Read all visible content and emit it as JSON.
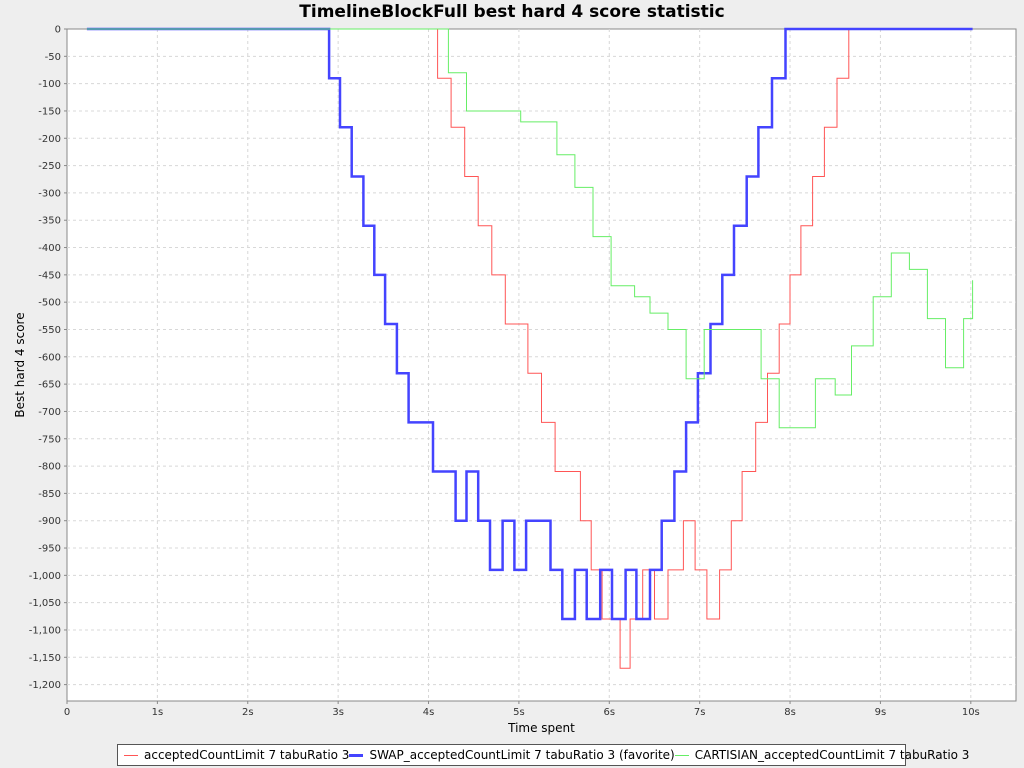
{
  "chart_data": {
    "type": "line",
    "title": "TimelineBlockFull best hard 4 score statistic",
    "xlabel": "Time spent",
    "ylabel": "Best hard 4 score",
    "xlim": [
      0,
      10.5
    ],
    "ylim": [
      -1230,
      0
    ],
    "x_ticks": [
      {
        "value": 0,
        "label": "0"
      },
      {
        "value": 1,
        "label": "1s"
      },
      {
        "value": 2,
        "label": "2s"
      },
      {
        "value": 3,
        "label": "3s"
      },
      {
        "value": 4,
        "label": "4s"
      },
      {
        "value": 5,
        "label": "5s"
      },
      {
        "value": 6,
        "label": "6s"
      },
      {
        "value": 7,
        "label": "7s"
      },
      {
        "value": 8,
        "label": "8s"
      },
      {
        "value": 9,
        "label": "9s"
      },
      {
        "value": 10,
        "label": "10s"
      }
    ],
    "y_ticks": [
      {
        "value": 0,
        "label": "0"
      },
      {
        "value": -50,
        "label": "-50"
      },
      {
        "value": -100,
        "label": "-100"
      },
      {
        "value": -150,
        "label": "-150"
      },
      {
        "value": -200,
        "label": "-200"
      },
      {
        "value": -250,
        "label": "-250"
      },
      {
        "value": -300,
        "label": "-300"
      },
      {
        "value": -350,
        "label": "-350"
      },
      {
        "value": -400,
        "label": "-400"
      },
      {
        "value": -450,
        "label": "-450"
      },
      {
        "value": -500,
        "label": "-500"
      },
      {
        "value": -550,
        "label": "-550"
      },
      {
        "value": -600,
        "label": "-600"
      },
      {
        "value": -650,
        "label": "-650"
      },
      {
        "value": -700,
        "label": "-700"
      },
      {
        "value": -750,
        "label": "-750"
      },
      {
        "value": -800,
        "label": "-800"
      },
      {
        "value": -850,
        "label": "-850"
      },
      {
        "value": -900,
        "label": "-900"
      },
      {
        "value": -950,
        "label": "-950"
      },
      {
        "value": -1000,
        "label": "-1,000"
      },
      {
        "value": -1050,
        "label": "-1,050"
      },
      {
        "value": -1100,
        "label": "-1,100"
      },
      {
        "value": -1150,
        "label": "-1,150"
      },
      {
        "value": -1200,
        "label": "-1,200"
      }
    ],
    "grid": true,
    "legend_position": "bottom",
    "series": [
      {
        "name": "acceptedCountLimit 7 tabuRatio 3",
        "color": "#ff5555",
        "width": 1,
        "step": true,
        "points": [
          [
            0.22,
            0
          ],
          [
            4.1,
            0
          ],
          [
            4.1,
            -90
          ],
          [
            4.25,
            -90
          ],
          [
            4.25,
            -180
          ],
          [
            4.4,
            -180
          ],
          [
            4.4,
            -270
          ],
          [
            4.55,
            -270
          ],
          [
            4.55,
            -360
          ],
          [
            4.7,
            -360
          ],
          [
            4.7,
            -450
          ],
          [
            4.85,
            -450
          ],
          [
            4.85,
            -540
          ],
          [
            5.1,
            -540
          ],
          [
            5.1,
            -630
          ],
          [
            5.25,
            -630
          ],
          [
            5.25,
            -720
          ],
          [
            5.4,
            -720
          ],
          [
            5.4,
            -810
          ],
          [
            5.68,
            -810
          ],
          [
            5.68,
            -900
          ],
          [
            5.8,
            -900
          ],
          [
            5.8,
            -990
          ],
          [
            5.92,
            -990
          ],
          [
            5.92,
            -1080
          ],
          [
            6.12,
            -1080
          ],
          [
            6.12,
            -1170
          ],
          [
            6.23,
            -1170
          ],
          [
            6.23,
            -1080
          ],
          [
            6.37,
            -1080
          ],
          [
            6.37,
            -990
          ],
          [
            6.5,
            -990
          ],
          [
            6.5,
            -1080
          ],
          [
            6.65,
            -1080
          ],
          [
            6.65,
            -990
          ],
          [
            6.82,
            -990
          ],
          [
            6.82,
            -900
          ],
          [
            6.95,
            -900
          ],
          [
            6.95,
            -990
          ],
          [
            7.08,
            -990
          ],
          [
            7.08,
            -1080
          ],
          [
            7.22,
            -1080
          ],
          [
            7.22,
            -990
          ],
          [
            7.35,
            -990
          ],
          [
            7.35,
            -900
          ],
          [
            7.47,
            -900
          ],
          [
            7.47,
            -810
          ],
          [
            7.62,
            -810
          ],
          [
            7.62,
            -720
          ],
          [
            7.75,
            -720
          ],
          [
            7.75,
            -630
          ],
          [
            7.88,
            -630
          ],
          [
            7.88,
            -540
          ],
          [
            8.0,
            -540
          ],
          [
            8.0,
            -450
          ],
          [
            8.12,
            -450
          ],
          [
            8.12,
            -360
          ],
          [
            8.25,
            -360
          ],
          [
            8.25,
            -270
          ],
          [
            8.38,
            -270
          ],
          [
            8.38,
            -180
          ],
          [
            8.52,
            -180
          ],
          [
            8.52,
            -90
          ],
          [
            8.65,
            -90
          ],
          [
            8.65,
            0
          ],
          [
            10.02,
            0
          ]
        ]
      },
      {
        "name": "SWAP_acceptedCountLimit 7 tabuRatio 3 (favorite)",
        "color": "#4444ff",
        "width": 2.5,
        "step": true,
        "points": [
          [
            0.22,
            0
          ],
          [
            2.9,
            0
          ],
          [
            2.9,
            -90
          ],
          [
            3.02,
            -90
          ],
          [
            3.02,
            -180
          ],
          [
            3.15,
            -180
          ],
          [
            3.15,
            -270
          ],
          [
            3.28,
            -270
          ],
          [
            3.28,
            -360
          ],
          [
            3.4,
            -360
          ],
          [
            3.4,
            -450
          ],
          [
            3.52,
            -450
          ],
          [
            3.52,
            -540
          ],
          [
            3.65,
            -540
          ],
          [
            3.65,
            -630
          ],
          [
            3.78,
            -630
          ],
          [
            3.78,
            -720
          ],
          [
            4.05,
            -720
          ],
          [
            4.05,
            -810
          ],
          [
            4.3,
            -810
          ],
          [
            4.3,
            -900
          ],
          [
            4.42,
            -900
          ],
          [
            4.42,
            -810
          ],
          [
            4.55,
            -810
          ],
          [
            4.55,
            -900
          ],
          [
            4.68,
            -900
          ],
          [
            4.68,
            -990
          ],
          [
            4.82,
            -990
          ],
          [
            4.82,
            -900
          ],
          [
            4.95,
            -900
          ],
          [
            4.95,
            -990
          ],
          [
            5.08,
            -990
          ],
          [
            5.08,
            -900
          ],
          [
            5.35,
            -900
          ],
          [
            5.35,
            -990
          ],
          [
            5.48,
            -990
          ],
          [
            5.48,
            -1080
          ],
          [
            5.62,
            -1080
          ],
          [
            5.62,
            -990
          ],
          [
            5.75,
            -990
          ],
          [
            5.75,
            -1080
          ],
          [
            5.9,
            -1080
          ],
          [
            5.9,
            -990
          ],
          [
            6.03,
            -990
          ],
          [
            6.03,
            -1080
          ],
          [
            6.18,
            -1080
          ],
          [
            6.18,
            -990
          ],
          [
            6.3,
            -990
          ],
          [
            6.3,
            -1080
          ],
          [
            6.45,
            -1080
          ],
          [
            6.45,
            -990
          ],
          [
            6.58,
            -990
          ],
          [
            6.58,
            -900
          ],
          [
            6.72,
            -900
          ],
          [
            6.72,
            -810
          ],
          [
            6.85,
            -810
          ],
          [
            6.85,
            -720
          ],
          [
            6.98,
            -720
          ],
          [
            6.98,
            -630
          ],
          [
            7.12,
            -630
          ],
          [
            7.12,
            -540
          ],
          [
            7.25,
            -540
          ],
          [
            7.25,
            -450
          ],
          [
            7.38,
            -450
          ],
          [
            7.38,
            -360
          ],
          [
            7.52,
            -360
          ],
          [
            7.52,
            -270
          ],
          [
            7.65,
            -270
          ],
          [
            7.65,
            -180
          ],
          [
            7.8,
            -180
          ],
          [
            7.8,
            -90
          ],
          [
            7.95,
            -90
          ],
          [
            7.95,
            0
          ],
          [
            10.02,
            0
          ]
        ]
      },
      {
        "name": "CARTISIAN_acceptedCountLimit 7 tabuRatio 3",
        "color": "#66ee66",
        "width": 1,
        "step": true,
        "points": [
          [
            0.22,
            0
          ],
          [
            4.22,
            0
          ],
          [
            4.22,
            -80
          ],
          [
            4.42,
            -80
          ],
          [
            4.42,
            -150
          ],
          [
            5.02,
            -150
          ],
          [
            5.02,
            -170
          ],
          [
            5.42,
            -170
          ],
          [
            5.42,
            -230
          ],
          [
            5.62,
            -230
          ],
          [
            5.62,
            -290
          ],
          [
            5.82,
            -290
          ],
          [
            5.82,
            -380
          ],
          [
            6.02,
            -380
          ],
          [
            6.02,
            -470
          ],
          [
            6.28,
            -470
          ],
          [
            6.28,
            -490
          ],
          [
            6.45,
            -490
          ],
          [
            6.45,
            -520
          ],
          [
            6.65,
            -520
          ],
          [
            6.65,
            -550
          ],
          [
            6.85,
            -550
          ],
          [
            6.85,
            -640
          ],
          [
            7.05,
            -640
          ],
          [
            7.05,
            -550
          ],
          [
            7.68,
            -550
          ],
          [
            7.68,
            -640
          ],
          [
            7.88,
            -640
          ],
          [
            7.88,
            -730
          ],
          [
            8.28,
            -730
          ],
          [
            8.28,
            -640
          ],
          [
            8.5,
            -640
          ],
          [
            8.5,
            -670
          ],
          [
            8.68,
            -670
          ],
          [
            8.68,
            -580
          ],
          [
            8.92,
            -580
          ],
          [
            8.92,
            -490
          ],
          [
            9.12,
            -490
          ],
          [
            9.12,
            -410
          ],
          [
            9.32,
            -410
          ],
          [
            9.32,
            -440
          ],
          [
            9.52,
            -440
          ],
          [
            9.52,
            -530
          ],
          [
            9.72,
            -530
          ],
          [
            9.72,
            -620
          ],
          [
            9.92,
            -620
          ],
          [
            9.92,
            -530
          ],
          [
            10.02,
            -530
          ],
          [
            10.02,
            -460
          ]
        ]
      }
    ]
  }
}
